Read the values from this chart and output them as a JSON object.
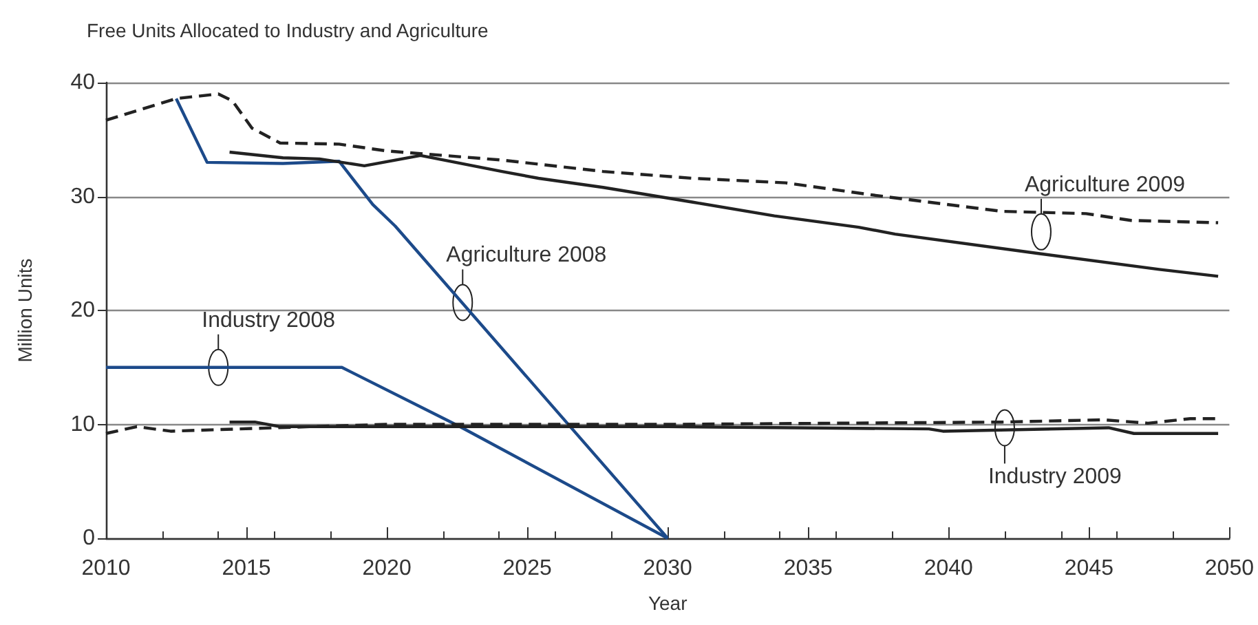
{
  "chart_data": {
    "type": "line",
    "title": "Free Units Allocated to Industry and Agriculture",
    "xlabel": "Year",
    "ylabel": "Million Units",
    "xlim": [
      2010,
      2050
    ],
    "xticks": [
      2010,
      2015,
      2020,
      2025,
      2030,
      2035,
      2040,
      2045,
      2050
    ],
    "ylim": [
      0,
      40
    ],
    "yticks": [
      0,
      10,
      20,
      30,
      40
    ],
    "grid": "y",
    "marker": "none",
    "series": [
      {
        "color": "#1c4a8a",
        "line_style": "solid",
        "x": [
          2012.5,
          2013.6,
          2016.3,
          2018.3,
          2019.5,
          2020.3,
          2030
        ],
        "values": [
          38.6,
          33.0,
          32.9,
          33.1,
          29.3,
          27.4,
          0
        ]
      },
      {
        "color": "#1c4a8a",
        "line_style": "solid",
        "x": [
          2010,
          2018.4,
          2022.6,
          2030
        ],
        "values": [
          15,
          15,
          9.8,
          0
        ]
      },
      {
        "color": "#222222",
        "line_style": "dashed",
        "x": [
          2010,
          2012.5,
          2014,
          2014.5,
          2015.2,
          2016.2,
          2018.3,
          2020,
          2024.1,
          2027.7,
          2030.9,
          2034.2,
          2037.4,
          2041.9,
          2044.9,
          2046.5,
          2049.6
        ],
        "values": [
          36.7,
          38.6,
          39.0,
          38.4,
          36.0,
          34.7,
          34.6,
          34.0,
          33.2,
          32.2,
          31.6,
          31.2,
          30.1,
          28.7,
          28.5,
          27.9,
          27.7
        ]
      },
      {
        "color": "#222222",
        "line_style": "solid",
        "x": [
          2014.4,
          2016.3,
          2017.6,
          2019.2,
          2021.2,
          2024.1,
          2025.4,
          2027.7,
          2030.9,
          2033.8,
          2036.8,
          2038.1,
          2043.2,
          2047.5,
          2049.6
        ],
        "values": [
          33.9,
          33.4,
          33.3,
          32.7,
          33.6,
          32.2,
          31.6,
          30.8,
          29.5,
          28.3,
          27.3,
          26.7,
          25.0,
          23.6,
          23.0
        ]
      },
      {
        "color": "#222222",
        "line_style": "dashed",
        "x": [
          2010,
          2011.1,
          2012.3,
          2016,
          2020,
          2030,
          2041.9,
          2045.5,
          2047.1,
          2048.6,
          2049.6
        ],
        "values": [
          9.2,
          9.8,
          9.4,
          9.7,
          10.0,
          10.0,
          10.2,
          10.4,
          10.1,
          10.5,
          10.5
        ]
      },
      {
        "color": "#222222",
        "line_style": "solid",
        "x": [
          2014.4,
          2015.3,
          2016.2,
          2030,
          2039.3,
          2039.8,
          2045.7,
          2046.6,
          2049.6
        ],
        "values": [
          10.2,
          10.2,
          9.8,
          9.8,
          9.6,
          9.4,
          9.7,
          9.2,
          9.2
        ]
      }
    ],
    "annotations": [
      {
        "text": "Agriculture 2008",
        "x": 2022.7,
        "y": 20.7
      },
      {
        "text": "Industry 2008",
        "x": 2014,
        "y": 15
      },
      {
        "text": "Agriculture 2009",
        "x": 2043.3,
        "y": 26.9
      },
      {
        "text": "Industry 2009",
        "x": 2042,
        "y": 9.7
      }
    ]
  }
}
